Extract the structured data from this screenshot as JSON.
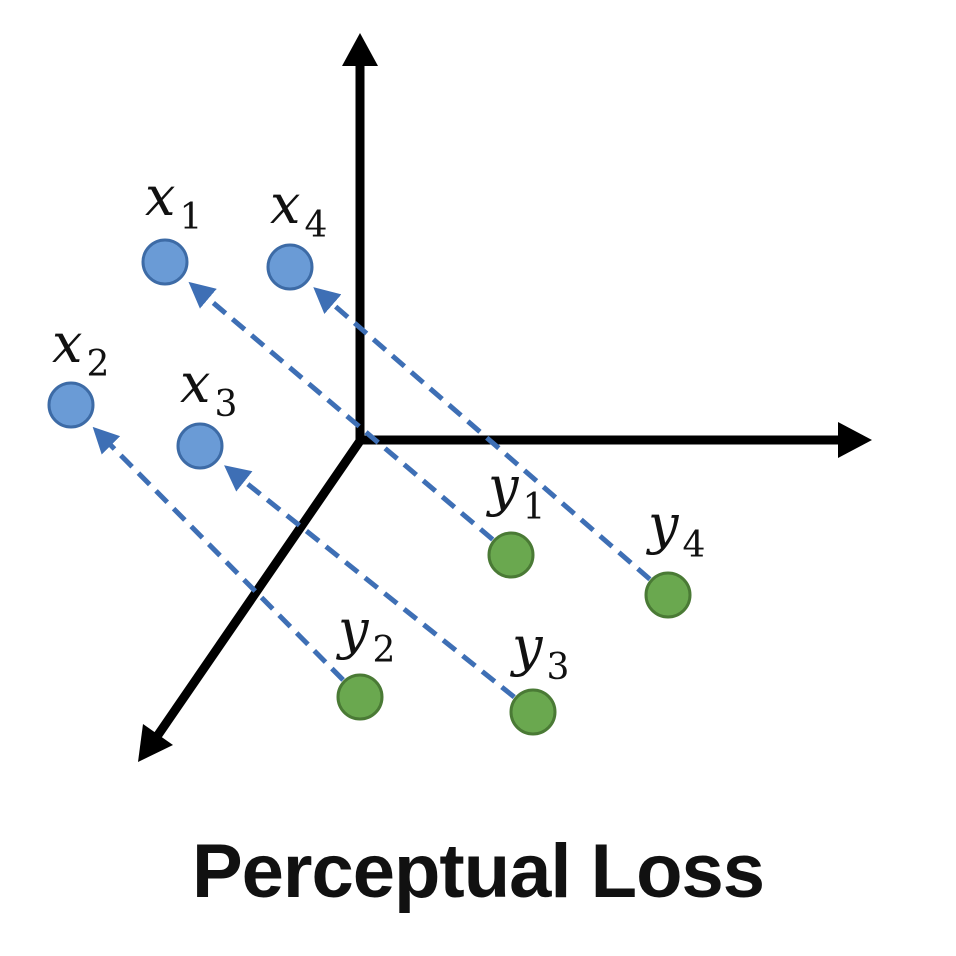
{
  "caption": "Perceptual Loss",
  "colors": {
    "axis": "#000000",
    "x_point_fill": "#6a9bd6",
    "x_point_stroke": "#3d6ba6",
    "y_point_fill": "#6aa84f",
    "y_point_stroke": "#4a7a35",
    "dashed_arrow": "#3e6fb5"
  },
  "points": {
    "x": [
      {
        "id": "x1",
        "base": "x",
        "sub": "1"
      },
      {
        "id": "x2",
        "base": "x",
        "sub": "2"
      },
      {
        "id": "x3",
        "base": "x",
        "sub": "3"
      },
      {
        "id": "x4",
        "base": "x",
        "sub": "4"
      }
    ],
    "y": [
      {
        "id": "y1",
        "base": "y",
        "sub": "1"
      },
      {
        "id": "y2",
        "base": "y",
        "sub": "2"
      },
      {
        "id": "y3",
        "base": "y",
        "sub": "3"
      },
      {
        "id": "y4",
        "base": "y",
        "sub": "4"
      }
    ]
  },
  "pairs": [
    {
      "from": "y1",
      "to": "x1"
    },
    {
      "from": "y2",
      "to": "x2"
    },
    {
      "from": "y3",
      "to": "x3"
    },
    {
      "from": "y4",
      "to": "x4"
    }
  ]
}
